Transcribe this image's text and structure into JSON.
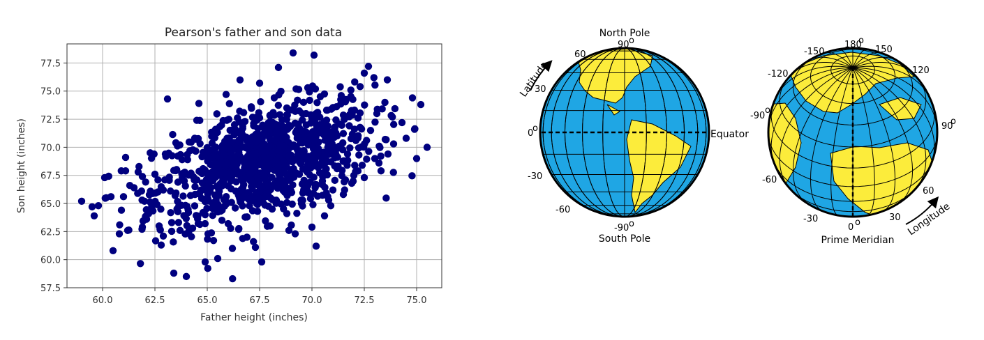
{
  "chart_data": [
    {
      "type": "scatter",
      "title": "Pearson's father and son data",
      "xlabel": "Father height (inches)",
      "ylabel": "Son height (inches)",
      "xlim": [
        58.3,
        76.2
      ],
      "ylim": [
        57.5,
        79.2
      ],
      "xticks": [
        "60.0",
        "62.5",
        "65.0",
        "67.5",
        "70.0",
        "72.5",
        "75.0"
      ],
      "yticks": [
        "57.5",
        "60.0",
        "62.5",
        "65.0",
        "67.5",
        "70.0",
        "72.5",
        "75.0",
        "77.5"
      ],
      "grid": true,
      "marker_color": "#00007f",
      "points_count": 1078,
      "points": [
        [
          59.0,
          65.2
        ],
        [
          59.5,
          64.7
        ],
        [
          59.6,
          63.9
        ],
        [
          59.8,
          64.8
        ],
        [
          60.1,
          67.3
        ],
        [
          60.4,
          65.6
        ],
        [
          60.5,
          60.8
        ],
        [
          60.8,
          62.3
        ],
        [
          60.9,
          64.4
        ],
        [
          61.0,
          65.6
        ],
        [
          61.1,
          69.1
        ],
        [
          61.1,
          67.9
        ],
        [
          61.2,
          62.6
        ],
        [
          61.3,
          66.6
        ],
        [
          61.5,
          66.4
        ],
        [
          61.7,
          67.8
        ],
        [
          61.9,
          67.4
        ],
        [
          61.9,
          62.9
        ],
        [
          62.0,
          65.2
        ],
        [
          62.1,
          63.6
        ],
        [
          62.2,
          64.1
        ],
        [
          62.4,
          65.9
        ],
        [
          62.5,
          67.6
        ],
        [
          62.6,
          64.9
        ],
        [
          62.7,
          63.0
        ],
        [
          62.8,
          61.3
        ],
        [
          62.9,
          62.1
        ],
        [
          63.0,
          69.4
        ],
        [
          63.1,
          74.3
        ],
        [
          63.3,
          63.3
        ],
        [
          63.4,
          58.8
        ],
        [
          63.5,
          70.4
        ],
        [
          63.7,
          62.6
        ],
        [
          63.9,
          67.0
        ],
        [
          64.0,
          58.5
        ],
        [
          64.1,
          64.2
        ],
        [
          64.3,
          62.8
        ],
        [
          64.5,
          72.4
        ],
        [
          64.6,
          73.9
        ],
        [
          64.7,
          66.2
        ],
        [
          64.9,
          59.8
        ],
        [
          65.0,
          65.5
        ],
        [
          65.1,
          69.0
        ],
        [
          65.2,
          67.2
        ],
        [
          65.3,
          61.7
        ],
        [
          65.5,
          60.1
        ],
        [
          65.6,
          68.6
        ],
        [
          65.7,
          66.9
        ],
        [
          65.9,
          74.7
        ],
        [
          66.0,
          63.2
        ],
        [
          66.1,
          69.8
        ],
        [
          66.2,
          61.0
        ],
        [
          66.4,
          67.9
        ],
        [
          66.5,
          70.6
        ],
        [
          66.6,
          65.1
        ],
        [
          66.8,
          72.3
        ],
        [
          66.9,
          63.8
        ],
        [
          67.0,
          68.4
        ],
        [
          67.2,
          70.9
        ],
        [
          67.3,
          61.1
        ],
        [
          67.4,
          67.3
        ],
        [
          67.5,
          75.7
        ],
        [
          67.6,
          59.8
        ],
        [
          67.7,
          69.6
        ],
        [
          67.9,
          66.6
        ],
        [
          68.0,
          72.8
        ],
        [
          68.1,
          64.5
        ],
        [
          68.3,
          68.9
        ],
        [
          68.4,
          77.1
        ],
        [
          68.5,
          70.2
        ],
        [
          68.7,
          66.0
        ],
        [
          68.8,
          73.5
        ],
        [
          68.9,
          62.6
        ],
        [
          69.0,
          69.3
        ],
        [
          69.1,
          78.4
        ],
        [
          69.3,
          71.1
        ],
        [
          69.4,
          67.6
        ],
        [
          69.5,
          65.0
        ],
        [
          69.6,
          74.0
        ],
        [
          69.8,
          68.2
        ],
        [
          69.9,
          70.7
        ],
        [
          70.0,
          72.6
        ],
        [
          70.1,
          78.2
        ],
        [
          70.2,
          61.2
        ],
        [
          70.3,
          69.9
        ],
        [
          70.5,
          67.0
        ],
        [
          70.6,
          63.9
        ],
        [
          70.7,
          73.3
        ],
        [
          70.9,
          68.7
        ],
        [
          71.0,
          66.2
        ],
        [
          71.1,
          71.8
        ],
        [
          71.3,
          70.1
        ],
        [
          71.4,
          74.6
        ],
        [
          71.5,
          65.8
        ],
        [
          71.7,
          69.4
        ],
        [
          71.8,
          72.9
        ],
        [
          72.0,
          67.5
        ],
        [
          72.1,
          70.6
        ],
        [
          72.3,
          75.4
        ],
        [
          72.4,
          68.4
        ],
        [
          72.5,
          76.6
        ],
        [
          72.7,
          77.2
        ],
        [
          72.8,
          71.5
        ],
        [
          73.0,
          69.0
        ],
        [
          73.1,
          73.0
        ],
        [
          73.3,
          67.9
        ],
        [
          73.5,
          70.7
        ],
        [
          73.6,
          76.0
        ],
        [
          73.9,
          70.3
        ],
        [
          74.3,
          72.2
        ],
        [
          74.5,
          70.8
        ],
        [
          74.8,
          74.4
        ],
        [
          74.9,
          71.6
        ],
        [
          75.0,
          69.0
        ],
        [
          75.2,
          73.8
        ],
        [
          75.5,
          70.0
        ],
        [
          64.4,
          70.8
        ],
        [
          65.4,
          71.6
        ],
        [
          66.3,
          72.0
        ],
        [
          67.1,
          73.6
        ],
        [
          68.2,
          74.4
        ],
        [
          69.2,
          73.2
        ],
        [
          70.4,
          74.5
        ],
        [
          71.6,
          74.1
        ],
        [
          72.2,
          72.6
        ],
        [
          63.8,
          68.9
        ],
        [
          64.8,
          68.1
        ],
        [
          65.8,
          67.7
        ],
        [
          66.7,
          66.4
        ],
        [
          67.8,
          65.6
        ],
        [
          68.6,
          66.7
        ],
        [
          69.7,
          66.1
        ],
        [
          70.8,
          65.3
        ],
        [
          71.9,
          66.8
        ],
        [
          62.9,
          66.2
        ],
        [
          63.6,
          66.9
        ],
        [
          64.2,
          65.7
        ],
        [
          64.9,
          64.0
        ],
        [
          65.7,
          63.5
        ],
        [
          66.5,
          62.7
        ],
        [
          67.4,
          64.3
        ],
        [
          68.0,
          63.0
        ],
        [
          68.8,
          64.1
        ],
        [
          69.2,
          62.3
        ],
        [
          70.0,
          62.9
        ],
        [
          70.9,
          64.8
        ],
        [
          71.6,
          67.1
        ],
        [
          72.5,
          67.3
        ],
        [
          73.2,
          68.6
        ]
      ]
    },
    {
      "type": "diagram",
      "left_globe": {
        "top_label": "North Pole",
        "bottom_label": "South Pole",
        "side_label": "Equator",
        "arc_label": "Latitude",
        "numbers": [
          "90",
          "60",
          "30",
          "0",
          "-30",
          "-60",
          "-90"
        ]
      },
      "right_globe": {
        "bottom_label": "Prime Meridian",
        "arc_label": "Longitude",
        "numbers": [
          "180",
          "-150",
          "150",
          "-120",
          "120",
          "-90",
          "90",
          "-60",
          "60",
          "-30",
          "30",
          "0"
        ]
      },
      "colors": {
        "ocean": "#1fa6e4",
        "land": "#fcec3b",
        "grid": "#000000"
      },
      "degree_symbol": "o"
    }
  ]
}
